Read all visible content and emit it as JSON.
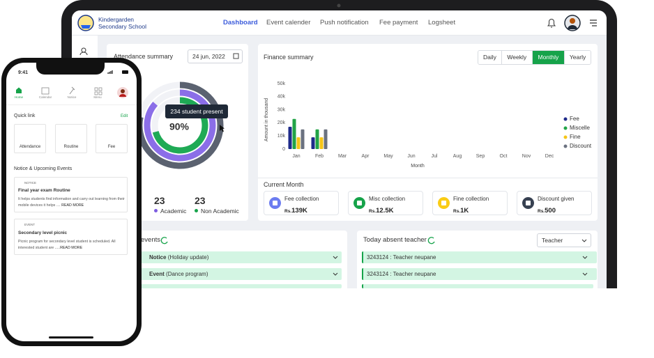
{
  "tablet": {
    "school_name": [
      "Kindergarden",
      "Secondary School"
    ],
    "nav": [
      "Dashboard",
      "Event calender",
      "Push notification",
      "Fee payment",
      "Logsheet"
    ],
    "active_nav": 0
  },
  "attendance_summary": {
    "title": "Attendance summary",
    "date": "24 jun, 2022",
    "tooltip": "234 student present",
    "percent_label": "90%",
    "stats": [
      {
        "value": 23,
        "label": "Academic",
        "color": "#7c5ce0"
      },
      {
        "value": 23,
        "label": "Non Academic",
        "color": "#16a34a"
      }
    ]
  },
  "finance_summary": {
    "title": "Finance summary",
    "tabs": [
      "Daily",
      "Weekly",
      "Monthly",
      "Yearly"
    ],
    "active_tab": 2,
    "chart_data": {
      "type": "bar",
      "ylabel": "Amount in thousand",
      "xlabel": "Month",
      "categories": [
        "Jan",
        "Feb",
        "Mar",
        "Apr",
        "May",
        "Jun",
        "Jul",
        "Aug",
        "Sep",
        "Oct",
        "Nov",
        "Dec"
      ],
      "series": [
        {
          "name": "Fee",
          "color": "#1e2a8a",
          "values": [
            17000,
            9000,
            null,
            null,
            null,
            null,
            null,
            null,
            null,
            null,
            null,
            null
          ]
        },
        {
          "name": "Miscelle",
          "color": "#22a447",
          "values": [
            23000,
            15000,
            null,
            null,
            null,
            null,
            null,
            null,
            null,
            null,
            null,
            null
          ]
        },
        {
          "name": "Fine",
          "color": "#f5c518",
          "values": [
            9000,
            9000,
            null,
            null,
            null,
            null,
            null,
            null,
            null,
            null,
            null,
            null
          ]
        },
        {
          "name": "Discount",
          "color": "#6b7280",
          "values": [
            15000,
            15000,
            null,
            null,
            null,
            null,
            null,
            null,
            null,
            null,
            null,
            null
          ]
        }
      ],
      "ylim": [
        0,
        50000
      ],
      "yticks": [
        0,
        {
          "value": 10000,
          "label": "10k"
        },
        {
          "value": 20000,
          "label": "20k"
        },
        {
          "value": 30000,
          "label": "30k"
        },
        {
          "value": 40000,
          "label": "40k"
        },
        {
          "value": 50000,
          "label": "50k"
        }
      ],
      "grid": false
    },
    "current_month": {
      "title": "Current Month",
      "currency": "Rs.",
      "cards": [
        {
          "label": "Fee collection",
          "amount": "139K",
          "color": "#6c7cf0"
        },
        {
          "label": "Misc collection",
          "amount": "12.5K",
          "color": "#16a34a"
        },
        {
          "label": "Fine collection",
          "amount": "1K",
          "color": "#facc15"
        },
        {
          "label": "Discount given",
          "amount": "500",
          "color": "#374151"
        }
      ]
    }
  },
  "events": {
    "title": "events",
    "rows": [
      {
        "type": "Notice",
        "detail": "(Holiday update)"
      },
      {
        "type": "Event",
        "detail": "(Dance program)"
      }
    ]
  },
  "absent_teacher": {
    "title": "Today absent teacher",
    "filter": "Teacher",
    "rows": [
      "3243124 : Teacher neupane",
      "3243124 : Teacher neupane"
    ]
  },
  "phone": {
    "time": "9:41",
    "nav": [
      "Home",
      "Calendar",
      "Notice",
      "Menu"
    ],
    "active_nav": 0,
    "quick_link": "Quick link",
    "edit": "Edit",
    "tiles": [
      "Attendance",
      "Routine",
      "Fee"
    ],
    "section_title": "Notice & Upcoming Events",
    "cards": [
      {
        "tag": "NOTICE",
        "title": "Final year exam Routine",
        "body": "It helps students find information and carry out learning from their mobile devices it helps ....",
        "more": "READ MORE"
      },
      {
        "tag": "EVENT",
        "title": "Secondary level picnic",
        "body": "Picnic program for secondary level student is scheduled. All interested student are .....",
        "more": "READ MORE"
      }
    ]
  }
}
